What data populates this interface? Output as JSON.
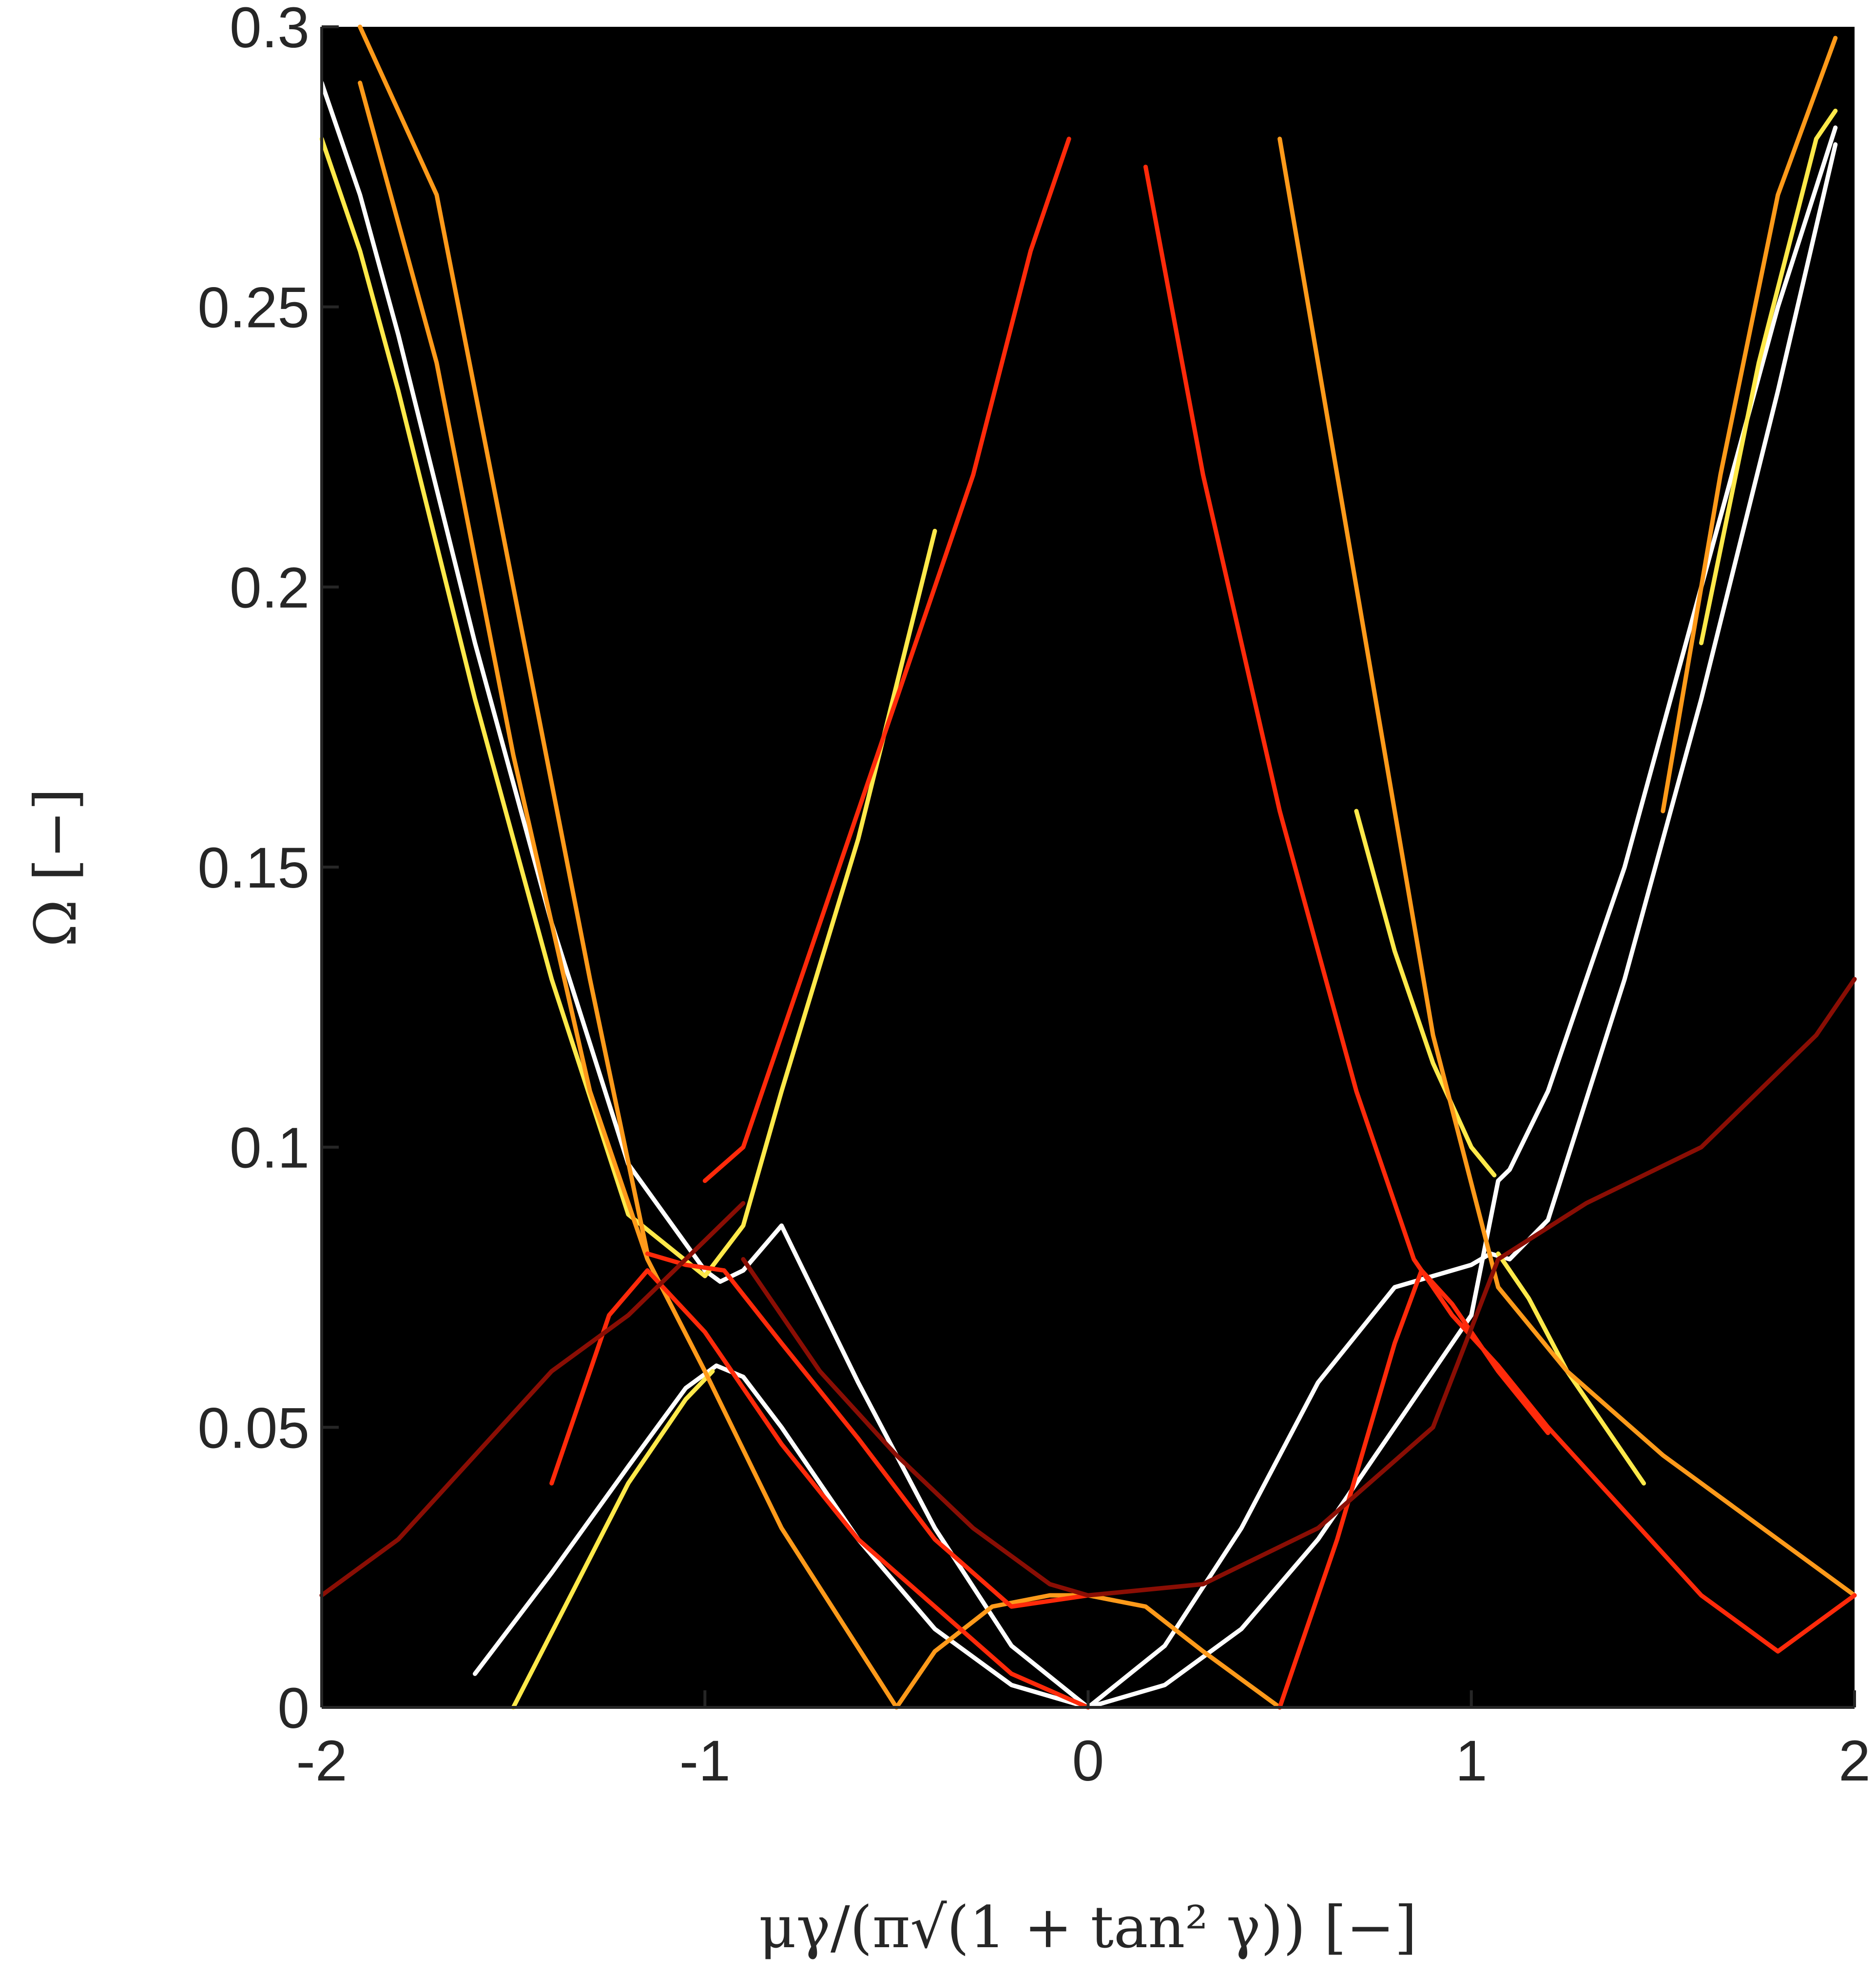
{
  "chart_data": {
    "type": "line",
    "title": "",
    "xlabel": "μγ/(π√(1 + tan² γ)) [−]",
    "ylabel": "Ω [−]",
    "xlim": [
      -2,
      2
    ],
    "ylim": [
      0,
      0.3
    ],
    "xticks": [
      -2,
      -1,
      0,
      1,
      2
    ],
    "xtick_labels": [
      "-2",
      "-1",
      "0",
      "1",
      "2"
    ],
    "yticks": [
      0,
      0.05,
      0.1,
      0.15,
      0.2,
      0.25,
      0.3
    ],
    "ytick_labels": [
      "0",
      "0.05",
      "0.1",
      "0.15",
      "0.2",
      "0.25",
      "0.3"
    ],
    "background_color": "#000000",
    "grid": false,
    "legend": "none",
    "series": [
      {
        "color": "#ffffff",
        "x": [
          -2.0,
          -1.9,
          -1.8,
          -1.6,
          -1.4,
          -1.2,
          -1.0,
          -0.96,
          -0.9,
          -0.8,
          -0.6,
          -0.4,
          -0.2,
          0.0,
          0.2,
          0.4,
          0.6,
          0.8,
          1.0,
          1.05,
          1.1,
          1.2,
          1.4,
          1.6,
          1.8,
          1.95
        ],
        "y": [
          0.29,
          0.27,
          0.245,
          0.19,
          0.14,
          0.097,
          0.078,
          0.076,
          0.078,
          0.086,
          0.058,
          0.032,
          0.011,
          0.0,
          0.011,
          0.032,
          0.058,
          0.075,
          0.079,
          0.081,
          0.08,
          0.087,
          0.13,
          0.18,
          0.235,
          0.279
        ]
      },
      {
        "color": "#ffffff",
        "x": [
          -1.6,
          -1.4,
          -1.2,
          -1.05,
          -0.97,
          -0.9,
          -0.8,
          -0.6,
          -0.4,
          -0.2,
          0.0,
          0.2,
          0.4,
          0.6,
          0.8,
          1.0,
          1.07,
          1.1,
          1.2,
          1.4,
          1.6,
          1.8,
          1.95
        ],
        "y": [
          0.006,
          0.024,
          0.043,
          0.057,
          0.061,
          0.059,
          0.05,
          0.03,
          0.014,
          0.004,
          0.0,
          0.004,
          0.014,
          0.03,
          0.05,
          0.07,
          0.094,
          0.096,
          0.11,
          0.15,
          0.2,
          0.25,
          0.282
        ]
      },
      {
        "color": "#ffe94a",
        "x": [
          -2.0,
          -1.9,
          -1.8,
          -1.6,
          -1.4,
          -1.2,
          -1.0,
          -0.9,
          -0.8,
          -0.6,
          -0.4
        ],
        "y": [
          0.28,
          0.26,
          0.235,
          0.18,
          0.13,
          0.088,
          0.077,
          0.086,
          0.11,
          0.155,
          0.21
        ]
      },
      {
        "color": "#ffe94a",
        "x": [
          -1.5,
          -1.35,
          -1.2,
          -1.05,
          -0.98
        ],
        "y": [
          0.0,
          0.02,
          0.04,
          0.055,
          0.06
        ]
      },
      {
        "color": "#ffe94a",
        "x": [
          0.7,
          0.8,
          0.9,
          1.0,
          1.06
        ],
        "y": [
          0.16,
          0.135,
          0.115,
          0.1,
          0.095
        ]
      },
      {
        "color": "#ffe94a",
        "x": [
          1.07,
          1.15,
          1.25,
          1.35,
          1.45
        ],
        "y": [
          0.081,
          0.073,
          0.06,
          0.05,
          0.04
        ]
      },
      {
        "color": "#ffe94a",
        "x": [
          1.6,
          1.75,
          1.9,
          1.95
        ],
        "y": [
          0.19,
          0.24,
          0.28,
          0.285
        ]
      },
      {
        "color": "#ff9a1a",
        "x": [
          -1.9,
          -1.7,
          -1.5,
          -1.3,
          -1.15,
          -1.0,
          -0.8,
          -0.5
        ],
        "y": [
          0.29,
          0.24,
          0.17,
          0.11,
          0.08,
          0.06,
          0.032,
          0.0
        ]
      },
      {
        "color": "#ff9a1a",
        "x": [
          -1.9,
          -1.7,
          -1.5,
          -1.3,
          -1.15
        ],
        "y": [
          0.3,
          0.27,
          0.2,
          0.13,
          0.081
        ]
      },
      {
        "color": "#ff9a1a",
        "x": [
          -0.5,
          -0.4,
          -0.25,
          -0.1,
          0.0,
          0.15,
          0.3,
          0.5
        ],
        "y": [
          0.0,
          0.01,
          0.018,
          0.02,
          0.02,
          0.018,
          0.01,
          0.0
        ]
      },
      {
        "color": "#ff9a1a",
        "x": [
          0.5,
          0.7,
          0.9,
          1.07,
          1.25,
          1.5,
          1.8,
          2.0
        ],
        "y": [
          0.28,
          0.2,
          0.12,
          0.075,
          0.06,
          0.045,
          0.03,
          0.02
        ]
      },
      {
        "color": "#ff9a1a",
        "x": [
          1.5,
          1.65,
          1.8,
          1.95
        ],
        "y": [
          0.16,
          0.22,
          0.27,
          0.298
        ]
      },
      {
        "color": "#ff2a0a",
        "x": [
          -1.4,
          -1.25,
          -1.15,
          -1.0,
          -0.8,
          -0.6,
          -0.4,
          -0.2,
          0.0
        ],
        "y": [
          0.04,
          0.07,
          0.078,
          0.067,
          0.047,
          0.03,
          0.018,
          0.006,
          0.0
        ]
      },
      {
        "color": "#ff2a0a",
        "x": [
          -1.0,
          -0.9,
          -0.7,
          -0.5,
          -0.3,
          -0.15,
          -0.05
        ],
        "y": [
          0.094,
          0.1,
          0.14,
          0.18,
          0.22,
          0.26,
          0.28
        ]
      },
      {
        "color": "#ff2a0a",
        "x": [
          -1.15,
          -1.05,
          -0.95,
          -0.8,
          -0.6,
          -0.4,
          -0.2,
          0.0
        ],
        "y": [
          0.081,
          0.079,
          0.078,
          0.065,
          0.048,
          0.03,
          0.018,
          0.02
        ]
      },
      {
        "color": "#ff2a0a",
        "x": [
          0.15,
          0.3,
          0.5,
          0.7,
          0.85,
          0.95,
          1.07,
          1.2,
          1.4,
          1.6,
          1.8,
          2.0
        ],
        "y": [
          0.275,
          0.22,
          0.16,
          0.11,
          0.08,
          0.07,
          0.061,
          0.05,
          0.035,
          0.02,
          0.01,
          0.02
        ]
      },
      {
        "color": "#ff2a0a",
        "x": [
          0.5,
          0.65,
          0.8,
          0.87,
          0.95,
          1.07,
          1.2
        ],
        "y": [
          0.0,
          0.03,
          0.065,
          0.078,
          0.072,
          0.06,
          0.049
        ]
      },
      {
        "color": "#8a0e04",
        "x": [
          -2.0,
          -1.8,
          -1.6,
          -1.4,
          -1.2,
          -1.05,
          -0.9
        ],
        "y": [
          0.02,
          0.03,
          0.045,
          0.06,
          0.07,
          0.08,
          0.09
        ]
      },
      {
        "color": "#8a0e04",
        "x": [
          -0.9,
          -0.7,
          -0.5,
          -0.3,
          -0.1,
          0.0
        ],
        "y": [
          0.08,
          0.06,
          0.045,
          0.032,
          0.022,
          0.02
        ]
      },
      {
        "color": "#8a0e04",
        "x": [
          0.0,
          0.3,
          0.6,
          0.9,
          1.07,
          1.3,
          1.6,
          1.9,
          2.0
        ],
        "y": [
          0.02,
          0.022,
          0.032,
          0.05,
          0.08,
          0.09,
          0.1,
          0.12,
          0.13
        ]
      }
    ]
  }
}
